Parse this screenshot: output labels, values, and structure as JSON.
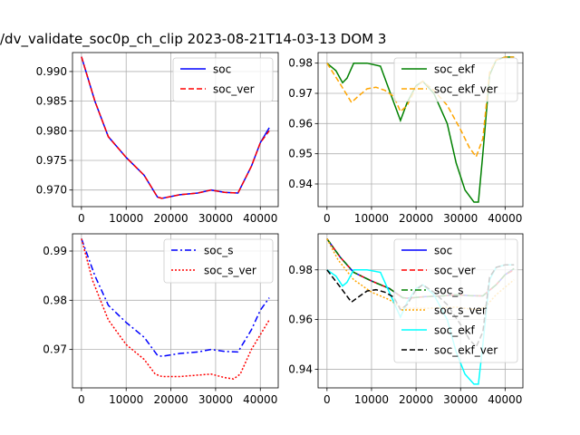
{
  "figure": {
    "title": "/dv_validate_soc0p_ch_clip   2023-08-21T14-03-13 DOM 3"
  },
  "chart_data": [
    {
      "type": "line",
      "position": "top-left",
      "xlim": [
        -2000,
        44000
      ],
      "ylim": [
        0.9672,
        0.9932
      ],
      "xticks": [
        0,
        10000,
        20000,
        30000,
        40000
      ],
      "yticks": [
        0.97,
        0.975,
        0.98,
        0.985,
        0.99
      ],
      "ytick_labels": [
        "0.970",
        "0.975",
        "0.980",
        "0.985",
        "0.990"
      ],
      "grid": true,
      "legend": "top-right",
      "series": [
        {
          "name": "soc",
          "color": "#0000ff",
          "style": "solid",
          "x": [
            0,
            3000,
            6000,
            10000,
            14000,
            17000,
            18000,
            22000,
            26000,
            29000,
            32000,
            35000,
            38000,
            40000,
            42000
          ],
          "y": [
            0.9925,
            0.985,
            0.979,
            0.9755,
            0.9725,
            0.9688,
            0.9686,
            0.9692,
            0.9695,
            0.97,
            0.9696,
            0.9695,
            0.974,
            0.978,
            0.9805
          ]
        },
        {
          "name": "soc_ver",
          "color": "#ff0000",
          "style": "dashed",
          "x": [
            0,
            3000,
            6000,
            10000,
            14000,
            17000,
            18000,
            22000,
            26000,
            29000,
            32000,
            35000,
            38000,
            40000,
            42000
          ],
          "y": [
            0.9925,
            0.985,
            0.979,
            0.9755,
            0.9725,
            0.9688,
            0.9686,
            0.9692,
            0.9695,
            0.97,
            0.9696,
            0.9695,
            0.974,
            0.978,
            0.98
          ]
        }
      ]
    },
    {
      "type": "line",
      "position": "top-right",
      "xlim": [
        -2000,
        44000
      ],
      "ylim": [
        0.9325,
        0.9835
      ],
      "xticks": [
        0,
        10000,
        20000,
        30000,
        40000
      ],
      "yticks": [
        0.94,
        0.95,
        0.96,
        0.97,
        0.98
      ],
      "ytick_labels": [
        "0.94",
        "0.95",
        "0.96",
        "0.97",
        "0.98"
      ],
      "grid": true,
      "legend": "top-right",
      "series": [
        {
          "name": "soc_ekf",
          "color": "#008000",
          "style": "solid",
          "x": [
            0,
            2000,
            3500,
            4500,
            6000,
            9000,
            12000,
            15000,
            16500,
            18000,
            20000,
            21500,
            24000,
            27000,
            29000,
            31000,
            33000,
            34000,
            35000,
            36500,
            38000,
            40000,
            42000
          ],
          "y": [
            0.98,
            0.9775,
            0.9735,
            0.975,
            0.98,
            0.98,
            0.979,
            0.967,
            0.961,
            0.967,
            0.9725,
            0.974,
            0.97,
            0.96,
            0.947,
            0.938,
            0.934,
            0.934,
            0.95,
            0.976,
            0.981,
            0.982,
            0.982
          ]
        },
        {
          "name": "soc_ekf_ver",
          "color": "#ffa500",
          "style": "dashed",
          "x": [
            0,
            3000,
            5500,
            7000,
            9000,
            11000,
            13000,
            15000,
            16500,
            18000,
            20000,
            21500,
            24000,
            27000,
            30000,
            32000,
            33500,
            35000,
            36500,
            38000,
            40000,
            42000
          ],
          "y": [
            0.98,
            0.973,
            0.967,
            0.969,
            0.9715,
            0.972,
            0.971,
            0.969,
            0.964,
            0.966,
            0.972,
            0.974,
            0.971,
            0.966,
            0.958,
            0.952,
            0.949,
            0.955,
            0.977,
            0.981,
            0.982,
            0.982
          ]
        }
      ]
    },
    {
      "type": "line",
      "position": "bottom-left",
      "xlim": [
        -2000,
        44000
      ],
      "ylim": [
        0.9622,
        0.9935
      ],
      "xticks": [
        0,
        10000,
        20000,
        30000,
        40000
      ],
      "yticks": [
        0.97,
        0.98,
        0.99
      ],
      "ytick_labels": [
        "0.97",
        "0.98",
        "0.99"
      ],
      "grid": true,
      "legend": "top-right",
      "series": [
        {
          "name": "soc_s",
          "color": "#0000ff",
          "style": "dashdot",
          "x": [
            0,
            3000,
            6000,
            10000,
            14000,
            17000,
            18000,
            22000,
            26000,
            29000,
            32000,
            35000,
            38000,
            40000,
            42000
          ],
          "y": [
            0.9925,
            0.985,
            0.979,
            0.9755,
            0.9725,
            0.9688,
            0.9686,
            0.9692,
            0.9695,
            0.97,
            0.9696,
            0.9695,
            0.974,
            0.978,
            0.9805
          ]
        },
        {
          "name": "soc_s_ver",
          "color": "#ff0000",
          "style": "dotted",
          "x": [
            0,
            2500,
            6000,
            10000,
            14000,
            16500,
            18000,
            22000,
            26000,
            29000,
            32000,
            34000,
            35500,
            38000,
            40000,
            42000
          ],
          "y": [
            0.9925,
            0.984,
            0.976,
            0.971,
            0.968,
            0.965,
            0.9645,
            0.9645,
            0.9648,
            0.965,
            0.9643,
            0.964,
            0.965,
            0.97,
            0.973,
            0.976
          ]
        }
      ]
    },
    {
      "type": "line",
      "position": "bottom-right",
      "xlim": [
        -2000,
        44000
      ],
      "ylim": [
        0.9325,
        0.9945
      ],
      "xticks": [
        0,
        10000,
        20000,
        30000,
        40000
      ],
      "yticks": [
        0.94,
        0.96,
        0.98
      ],
      "ytick_labels": [
        "0.94",
        "0.96",
        "0.98"
      ],
      "grid": true,
      "legend": "top-right",
      "series": [
        {
          "name": "soc",
          "color": "#0000ff",
          "style": "solid",
          "x": [
            0,
            3000,
            6000,
            10000,
            14000,
            17000,
            18000,
            22000,
            26000,
            29000,
            32000,
            35000,
            38000,
            40000,
            42000
          ],
          "y": [
            0.9925,
            0.985,
            0.979,
            0.9755,
            0.9725,
            0.9688,
            0.9686,
            0.9692,
            0.9695,
            0.97,
            0.9696,
            0.9695,
            0.974,
            0.978,
            0.9805
          ]
        },
        {
          "name": "soc_ver",
          "color": "#ff0000",
          "style": "dashed",
          "x": [
            0,
            3000,
            6000,
            10000,
            14000,
            17000,
            18000,
            22000,
            26000,
            29000,
            32000,
            35000,
            38000,
            40000,
            42000
          ],
          "y": [
            0.9925,
            0.985,
            0.979,
            0.9755,
            0.9725,
            0.9688,
            0.9686,
            0.9692,
            0.9695,
            0.97,
            0.9696,
            0.9695,
            0.974,
            0.978,
            0.98
          ]
        },
        {
          "name": "soc_s",
          "color": "#008000",
          "style": "dashdot",
          "x": [
            0,
            3000,
            6000,
            10000,
            14000,
            17000,
            18000,
            22000,
            26000,
            29000,
            32000,
            35000,
            38000,
            40000,
            42000
          ],
          "y": [
            0.9925,
            0.985,
            0.979,
            0.9755,
            0.9725,
            0.9688,
            0.9686,
            0.9692,
            0.9695,
            0.97,
            0.9696,
            0.9695,
            0.974,
            0.978,
            0.9805
          ]
        },
        {
          "name": "soc_s_ver",
          "color": "#ffa500",
          "style": "dotted",
          "x": [
            0,
            2500,
            6000,
            10000,
            14000,
            16500,
            18000,
            22000,
            26000,
            29000,
            32000,
            34000,
            35500,
            38000,
            40000,
            42000
          ],
          "y": [
            0.9925,
            0.984,
            0.976,
            0.971,
            0.968,
            0.965,
            0.9645,
            0.9645,
            0.9648,
            0.965,
            0.9643,
            0.964,
            0.965,
            0.97,
            0.973,
            0.976
          ]
        },
        {
          "name": "soc_ekf",
          "color": "#00ffff",
          "style": "solid",
          "x": [
            0,
            2000,
            3500,
            4500,
            6000,
            9000,
            12000,
            15000,
            16500,
            18000,
            20000,
            21500,
            24000,
            27000,
            29000,
            31000,
            33000,
            34000,
            35000,
            36500,
            38000,
            40000,
            42000
          ],
          "y": [
            0.98,
            0.9775,
            0.9735,
            0.975,
            0.98,
            0.98,
            0.979,
            0.967,
            0.961,
            0.967,
            0.9725,
            0.974,
            0.97,
            0.96,
            0.947,
            0.938,
            0.934,
            0.934,
            0.95,
            0.976,
            0.981,
            0.982,
            0.982
          ]
        },
        {
          "name": "soc_ekf_ver",
          "color": "#000000",
          "style": "dashed",
          "x": [
            0,
            3000,
            5500,
            7000,
            9000,
            11000,
            13000,
            15000,
            16500,
            18000,
            20000,
            21500,
            24000,
            27000,
            30000,
            32000,
            33500,
            35000,
            36500,
            38000,
            40000,
            42000
          ],
          "y": [
            0.98,
            0.973,
            0.967,
            0.969,
            0.9715,
            0.972,
            0.971,
            0.969,
            0.964,
            0.966,
            0.972,
            0.974,
            0.971,
            0.966,
            0.958,
            0.952,
            0.949,
            0.955,
            0.977,
            0.981,
            0.982,
            0.982
          ]
        }
      ]
    }
  ]
}
